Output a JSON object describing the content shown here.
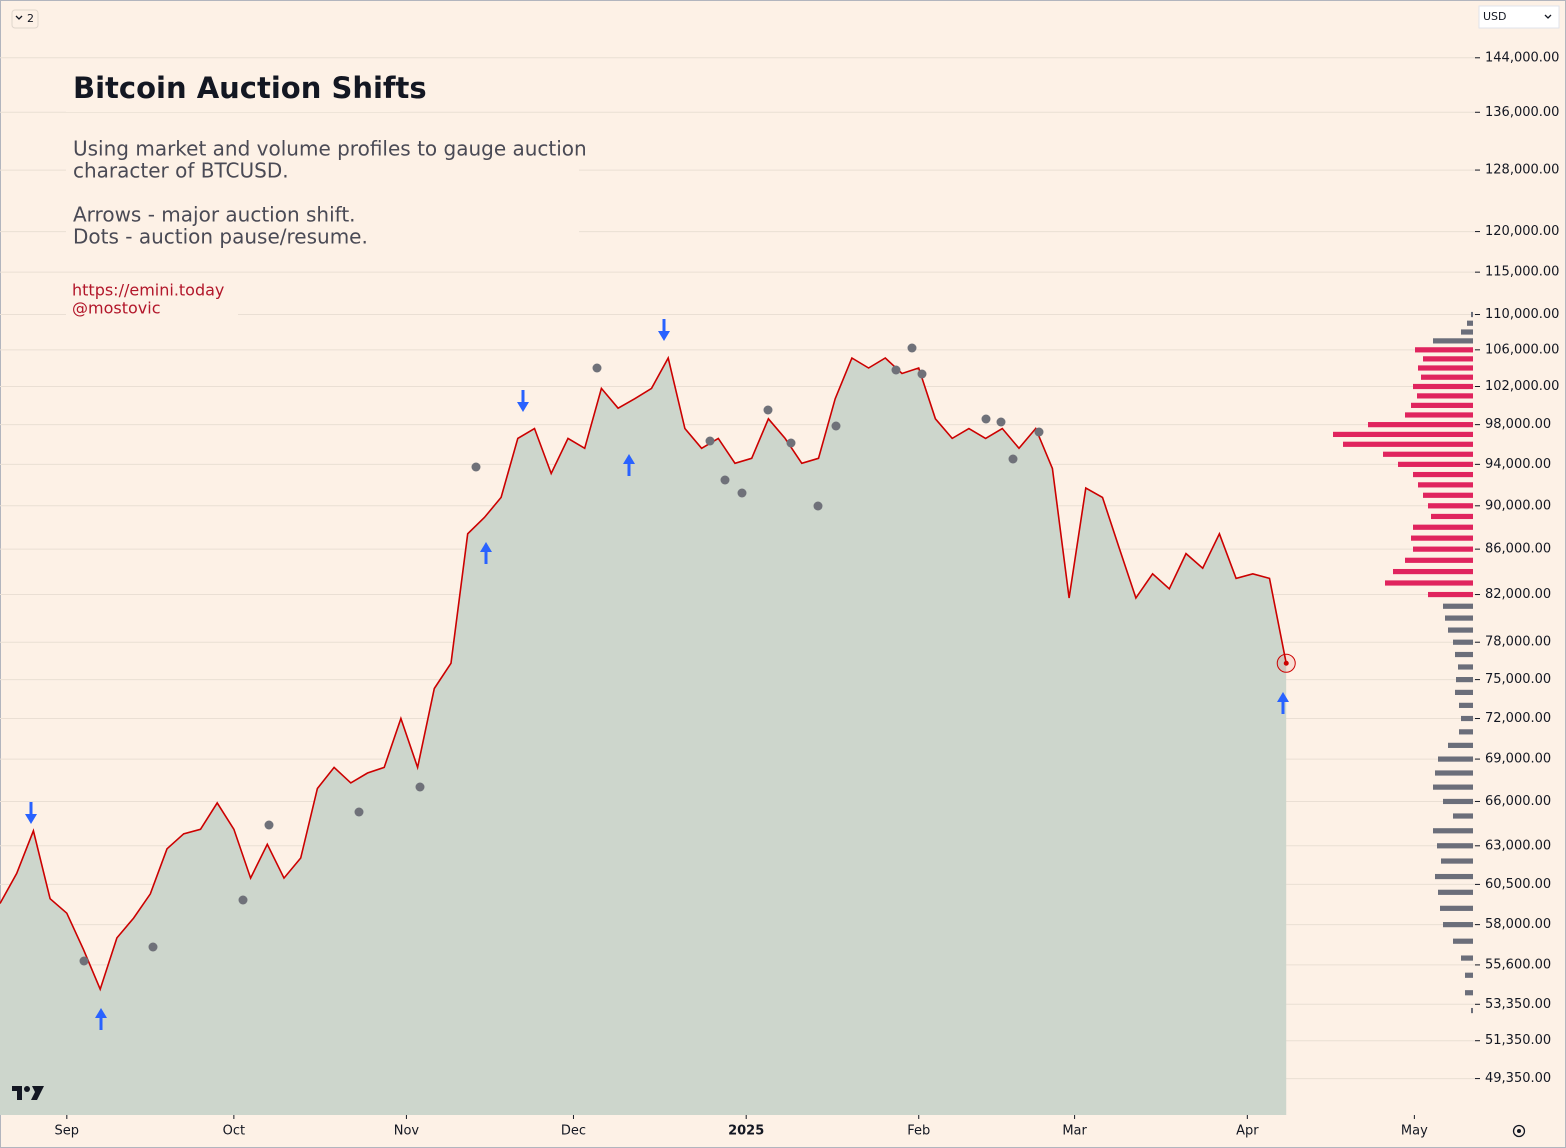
{
  "ui": {
    "layout_count": "2",
    "currency": "USD"
  },
  "chart_data": {
    "type": "area",
    "title": "Bitcoin Auction Shifts",
    "subtitle_lines": [
      "Using market and volume profiles to gauge auction",
      "character of BTCUSD.",
      "Arrows - major auction shift.",
      "Dots - auction pause/resume."
    ],
    "links": [
      "https://emini.today",
      "@mostovic"
    ],
    "log_scale": true,
    "grid": true,
    "ylim": [
      47500,
      153000
    ],
    "yticks": [
      {
        "value": 144000,
        "label": "144,000.00"
      },
      {
        "value": 136000,
        "label": "136,000.00"
      },
      {
        "value": 128000,
        "label": "128,000.00"
      },
      {
        "value": 120000,
        "label": "120,000.00"
      },
      {
        "value": 115000,
        "label": "115,000.00"
      },
      {
        "value": 110000,
        "label": "110,000.00"
      },
      {
        "value": 106000,
        "label": "106,000.00"
      },
      {
        "value": 102000,
        "label": "102,000.00"
      },
      {
        "value": 98000,
        "label": "98,000.00"
      },
      {
        "value": 94000,
        "label": "94,000.00"
      },
      {
        "value": 90000,
        "label": "90,000.00"
      },
      {
        "value": 86000,
        "label": "86,000.00"
      },
      {
        "value": 82000,
        "label": "82,000.00"
      },
      {
        "value": 78000,
        "label": "78,000.00"
      },
      {
        "value": 75000,
        "label": "75,000.00"
      },
      {
        "value": 72000,
        "label": "72,000.00"
      },
      {
        "value": 69000,
        "label": "69,000.00"
      },
      {
        "value": 66000,
        "label": "66,000.00"
      },
      {
        "value": 63000,
        "label": "63,000.00"
      },
      {
        "value": 60500,
        "label": "60,500.00"
      },
      {
        "value": 58000,
        "label": "58,000.00"
      },
      {
        "value": 55600,
        "label": "55,600.00"
      },
      {
        "value": 53350,
        "label": "53,350.00"
      },
      {
        "value": 51350,
        "label": "51,350.00"
      },
      {
        "value": 49350,
        "label": "49,350.00"
      }
    ],
    "xlim": [
      0,
      88.3
    ],
    "xticks": [
      {
        "value": 4,
        "label": "Sep"
      },
      {
        "value": 14,
        "label": "Oct"
      },
      {
        "value": 24.33,
        "label": "Nov"
      },
      {
        "value": 34.33,
        "label": "Dec"
      },
      {
        "value": 44.67,
        "label": "2025",
        "bold": true
      },
      {
        "value": 55,
        "label": "Feb"
      },
      {
        "value": 64.33,
        "label": "Mar"
      },
      {
        "value": 74.67,
        "label": "Apr"
      },
      {
        "value": 84.67,
        "label": "May"
      }
    ],
    "series": [
      {
        "color": "#cc0000",
        "fill": "#cdd6cc",
        "values": [
          59300,
          61200,
          64000,
          59600,
          58700,
          56500,
          54200,
          57200,
          58400,
          59900,
          62800,
          63800,
          64100,
          65900,
          64100,
          60900,
          63100,
          60900,
          62200,
          66900,
          68400,
          67300,
          68000,
          68400,
          72000,
          68400,
          74300,
          76300,
          87400,
          88900,
          90800,
          96600,
          97600,
          93100,
          96600,
          95600,
          101800,
          99700,
          100700,
          101800,
          105100,
          97600,
          95600,
          96600,
          94100,
          94600,
          98600,
          96600,
          94100,
          94600,
          100700,
          105100,
          104000,
          105100,
          103400,
          104000,
          98600,
          96600,
          97600,
          96600,
          97600,
          95600,
          97600,
          93600,
          81700,
          91700,
          90800,
          86100,
          81700,
          83800,
          82500,
          85600,
          84300,
          87400,
          83400,
          83800,
          83400,
          76300
        ]
      }
    ],
    "profile_high": {
      "color": "#e0245e",
      "levels": [
        106000,
        105000,
        104000,
        103000,
        102000,
        101000,
        100000,
        99000,
        98000,
        97000,
        96000,
        95000,
        94000,
        93000,
        92000,
        91000,
        90000,
        89000,
        88000,
        87000,
        86000,
        85000,
        84000,
        83000,
        82000
      ],
      "values": [
        58,
        50,
        55,
        52,
        60,
        56,
        62,
        68,
        105,
        140,
        130,
        90,
        75,
        60,
        55,
        50,
        45,
        42,
        60,
        62,
        60,
        68,
        80,
        88,
        45
      ]
    },
    "profile_low": {
      "color": "#6b6e7a",
      "levels": [
        110000,
        109000,
        108000,
        107000,
        81000,
        80000,
        79000,
        78000,
        77000,
        76000,
        75000,
        74000,
        73000,
        72000,
        71000,
        70000,
        69000,
        68000,
        67000,
        66000,
        65000,
        64000,
        63000,
        62000,
        61000,
        60000,
        59000,
        58000,
        57000,
        56000,
        55000,
        54000,
        53000
      ],
      "values": [
        2,
        6,
        12,
        40,
        30,
        28,
        25,
        20,
        18,
        15,
        17,
        18,
        14,
        12,
        14,
        25,
        35,
        38,
        40,
        30,
        20,
        40,
        36,
        32,
        38,
        35,
        33,
        30,
        20,
        12,
        8,
        8,
        2
      ]
    }
  }
}
